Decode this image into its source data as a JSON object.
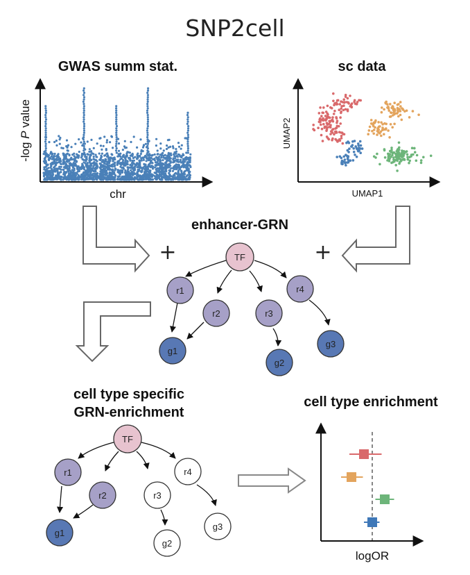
{
  "title": "SNP2cell",
  "gwas": {
    "heading": "GWAS summ stat.",
    "ylabel_prefix": "-log ",
    "ylabel_italic": "P",
    "ylabel_suffix": " value",
    "xlabel": "chr"
  },
  "sc": {
    "heading": "sc data",
    "xlabel": "UMAP1",
    "ylabel": "UMAP2"
  },
  "grn": {
    "heading": "enhancer-GRN",
    "plus": "+",
    "nodes": {
      "tf": "TF",
      "r1": "r1",
      "r2": "r2",
      "r3": "r3",
      "r4": "r4",
      "g1": "g1",
      "g2": "g2",
      "g3": "g3"
    }
  },
  "enrich_grn": {
    "heading_line1": "cell type specific",
    "heading_line2": "GRN-enrichment",
    "nodes": {
      "tf": "TF",
      "r1": "r1",
      "r2": "r2",
      "r3": "r3",
      "r4": "r4",
      "g1": "g1",
      "g2": "g2",
      "g3": "g3"
    },
    "highlighted": [
      "TF",
      "r1",
      "r2",
      "g1"
    ]
  },
  "forest": {
    "heading": "cell type enrichment",
    "xlabel": "logOR",
    "rows": [
      {
        "color": "#d9696b",
        "estimate": -0.8,
        "low": -2.2,
        "high": 0.9
      },
      {
        "color": "#e3a45d",
        "estimate": -2.0,
        "low": -3.0,
        "high": -0.9
      },
      {
        "color": "#6db57a",
        "estimate": 1.2,
        "low": 0.3,
        "high": 2.1
      },
      {
        "color": "#3f78b8",
        "estimate": 0.0,
        "low": -0.8,
        "high": 0.7
      }
    ]
  },
  "colors": {
    "manhattan": "#4a80b8",
    "umap_red": "#d9696b",
    "umap_orange": "#e3a45d",
    "umap_blue": "#4a80b8",
    "umap_green": "#6db57a",
    "tf_fill": "#e7c3cf",
    "regulator_fill": "#a6a0c7",
    "gene_fill": "#5878b4"
  }
}
